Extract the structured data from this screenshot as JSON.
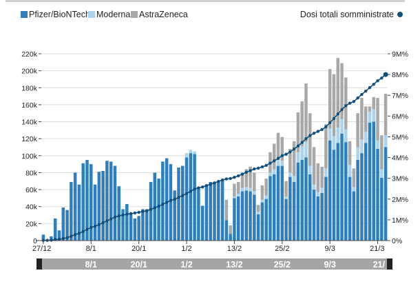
{
  "chart_data": {
    "type": "bar",
    "title": "",
    "legend": [
      {
        "name": "Pfizer/BioNTech",
        "color": "#2e7fc1",
        "kind": "bar"
      },
      {
        "name": "Moderna",
        "color": "#a9d3f0",
        "kind": "bar"
      },
      {
        "name": "AstraZeneca",
        "color": "#a8a8a8",
        "kind": "bar"
      }
    ],
    "line_series": {
      "name": "Dosi totali somministrate",
      "color": "#10507e",
      "axis": "right"
    },
    "left_axis": {
      "range": [
        0,
        220000
      ],
      "ticks": [
        "0",
        "20k",
        "40k",
        "60k",
        "80k",
        "100k",
        "120k",
        "140k",
        "160k",
        "180k",
        "200k",
        "220k"
      ]
    },
    "right_axis": {
      "range": [
        0,
        9
      ],
      "unit": "M",
      "ticks": [
        "0%",
        "1M%",
        "2M%",
        "3M%",
        "4M%",
        "5M%",
        "6M%",
        "7M%",
        "8M%",
        "9M%"
      ]
    },
    "x_ticks": [
      "27/12",
      "8/1",
      "20/1",
      "1/2",
      "13/2",
      "25/2",
      "9/3",
      "21/3"
    ],
    "x_tick_indices": [
      0,
      12,
      24,
      36,
      48,
      60,
      72,
      84
    ],
    "navigator_labels": [
      "8/1",
      "20/1",
      "1/2",
      "13/2",
      "25/2",
      "9/3",
      "21/"
    ],
    "colors": {
      "pfizer": "#2e7fc1",
      "moderna": "#a9d3f0",
      "astrazeneca": "#a8a8a8",
      "line": "#10507e",
      "grid": "#dcdcdc",
      "navigator": "#a5a5a5",
      "handle": "#222222"
    },
    "series": [
      {
        "name": "Pfizer/BioNTech",
        "values": [
          7000,
          1000,
          5000,
          26000,
          12000,
          39000,
          36000,
          69000,
          80000,
          66000,
          91000,
          95000,
          90000,
          66000,
          81000,
          82000,
          94000,
          93000,
          88000,
          64000,
          37000,
          43000,
          32000,
          26000,
          29000,
          37000,
          37000,
          69000,
          80000,
          73000,
          93000,
          97000,
          90000,
          59000,
          86000,
          88000,
          98000,
          103000,
          102000,
          63000,
          41000,
          65000,
          69000,
          69000,
          69000,
          71000,
          24000,
          8000,
          50000,
          52000,
          58000,
          59000,
          58000,
          54000,
          31000,
          45000,
          49000,
          76000,
          78000,
          88000,
          88000,
          49000,
          75000,
          69000,
          92000,
          95000,
          98000,
          78000,
          60000,
          52000,
          56000,
          75000,
          118000,
          107000,
          115000,
          126000,
          116000,
          75000,
          58000,
          95000,
          103000,
          115000,
          139000,
          140000,
          108000,
          74000,
          110000
        ]
      },
      {
        "name": "Moderna",
        "values": [
          0,
          0,
          0,
          0,
          0,
          0,
          0,
          0,
          0,
          0,
          0,
          0,
          0,
          0,
          0,
          0,
          0,
          0,
          0,
          0,
          0,
          0,
          0,
          0,
          0,
          0,
          0,
          0,
          0,
          0,
          0,
          0,
          0,
          0,
          0,
          0,
          5000,
          4000,
          3000,
          0,
          0,
          0,
          0,
          0,
          0,
          0,
          0,
          0,
          2000,
          3000,
          4000,
          4000,
          4000,
          4000,
          3000,
          3000,
          4000,
          4000,
          6000,
          10000,
          6000,
          3000,
          5000,
          7000,
          12000,
          16000,
          18000,
          10000,
          6000,
          5000,
          6000,
          10000,
          14000,
          16000,
          18000,
          17000,
          15000,
          14000,
          5000,
          15000,
          16000,
          13000,
          13000,
          15000,
          10000,
          10000,
          14000
        ]
      },
      {
        "name": "AstraZeneca",
        "values": [
          0,
          0,
          0,
          0,
          0,
          0,
          0,
          0,
          0,
          0,
          0,
          0,
          0,
          0,
          0,
          0,
          0,
          0,
          0,
          0,
          0,
          0,
          0,
          0,
          0,
          0,
          0,
          0,
          0,
          0,
          0,
          0,
          0,
          0,
          0,
          0,
          0,
          0,
          0,
          0,
          0,
          0,
          0,
          0,
          0,
          0,
          24000,
          10000,
          15000,
          14000,
          18000,
          21000,
          25000,
          22000,
          8000,
          17000,
          20000,
          24000,
          30000,
          29000,
          28000,
          18000,
          28000,
          41000,
          47000,
          53000,
          69000,
          62000,
          44000,
          34000,
          25000,
          52000,
          70000,
          73000,
          82000,
          66000,
          61000,
          28000,
          22000,
          40000,
          49000,
          30000,
          6000,
          14000,
          50000,
          40000,
          49000
        ]
      },
      {
        "name": "Dosi totali somministrate",
        "axis": "right",
        "values": [
          0.01,
          0.01,
          0.02,
          0.05,
          0.06,
          0.1,
          0.14,
          0.21,
          0.29,
          0.35,
          0.44,
          0.54,
          0.63,
          0.69,
          0.77,
          0.86,
          0.95,
          1.04,
          1.13,
          1.19,
          1.23,
          1.27,
          1.3,
          1.33,
          1.36,
          1.4,
          1.43,
          1.5,
          1.58,
          1.65,
          1.75,
          1.84,
          1.93,
          1.99,
          2.08,
          2.17,
          2.27,
          2.37,
          2.48,
          2.54,
          2.58,
          2.65,
          2.71,
          2.78,
          2.85,
          2.92,
          2.97,
          2.99,
          3.05,
          3.12,
          3.2,
          3.29,
          3.37,
          3.45,
          3.49,
          3.55,
          3.62,
          3.73,
          3.84,
          3.96,
          4.09,
          4.16,
          4.27,
          4.41,
          4.56,
          4.73,
          4.91,
          5.06,
          5.17,
          5.26,
          5.35,
          5.48,
          5.68,
          5.88,
          6.1,
          6.31,
          6.5,
          6.62,
          6.7,
          6.87,
          7.04,
          7.2,
          7.37,
          7.53,
          7.7,
          7.83,
          8.0
        ]
      }
    ]
  }
}
